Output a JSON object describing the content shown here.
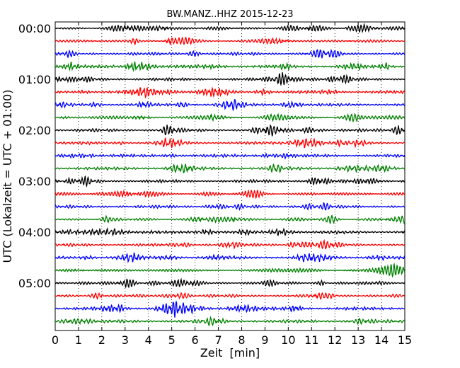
{
  "chart_data": {
    "type": "line",
    "title": "BW.MANZ..HHZ 2015-12-23",
    "xlabel": "Zeit  [min]",
    "ylabel": "UTC (Lokalzeit = UTC + 01:00)",
    "xlim": [
      0,
      15
    ],
    "x_ticks": [
      0,
      1,
      2,
      3,
      4,
      5,
      6,
      7,
      8,
      9,
      10,
      11,
      12,
      13,
      14,
      15
    ],
    "y_tick_labels": [
      "00:00",
      "01:00",
      "02:00",
      "03:00",
      "04:00",
      "05:00"
    ],
    "grid": "x-dotted",
    "row_colors": [
      "#000000",
      "#ff0000",
      "#0000ff",
      "#008000"
    ],
    "rows_per_hour": 4,
    "row_count": 24,
    "segment_minutes": 15
  }
}
